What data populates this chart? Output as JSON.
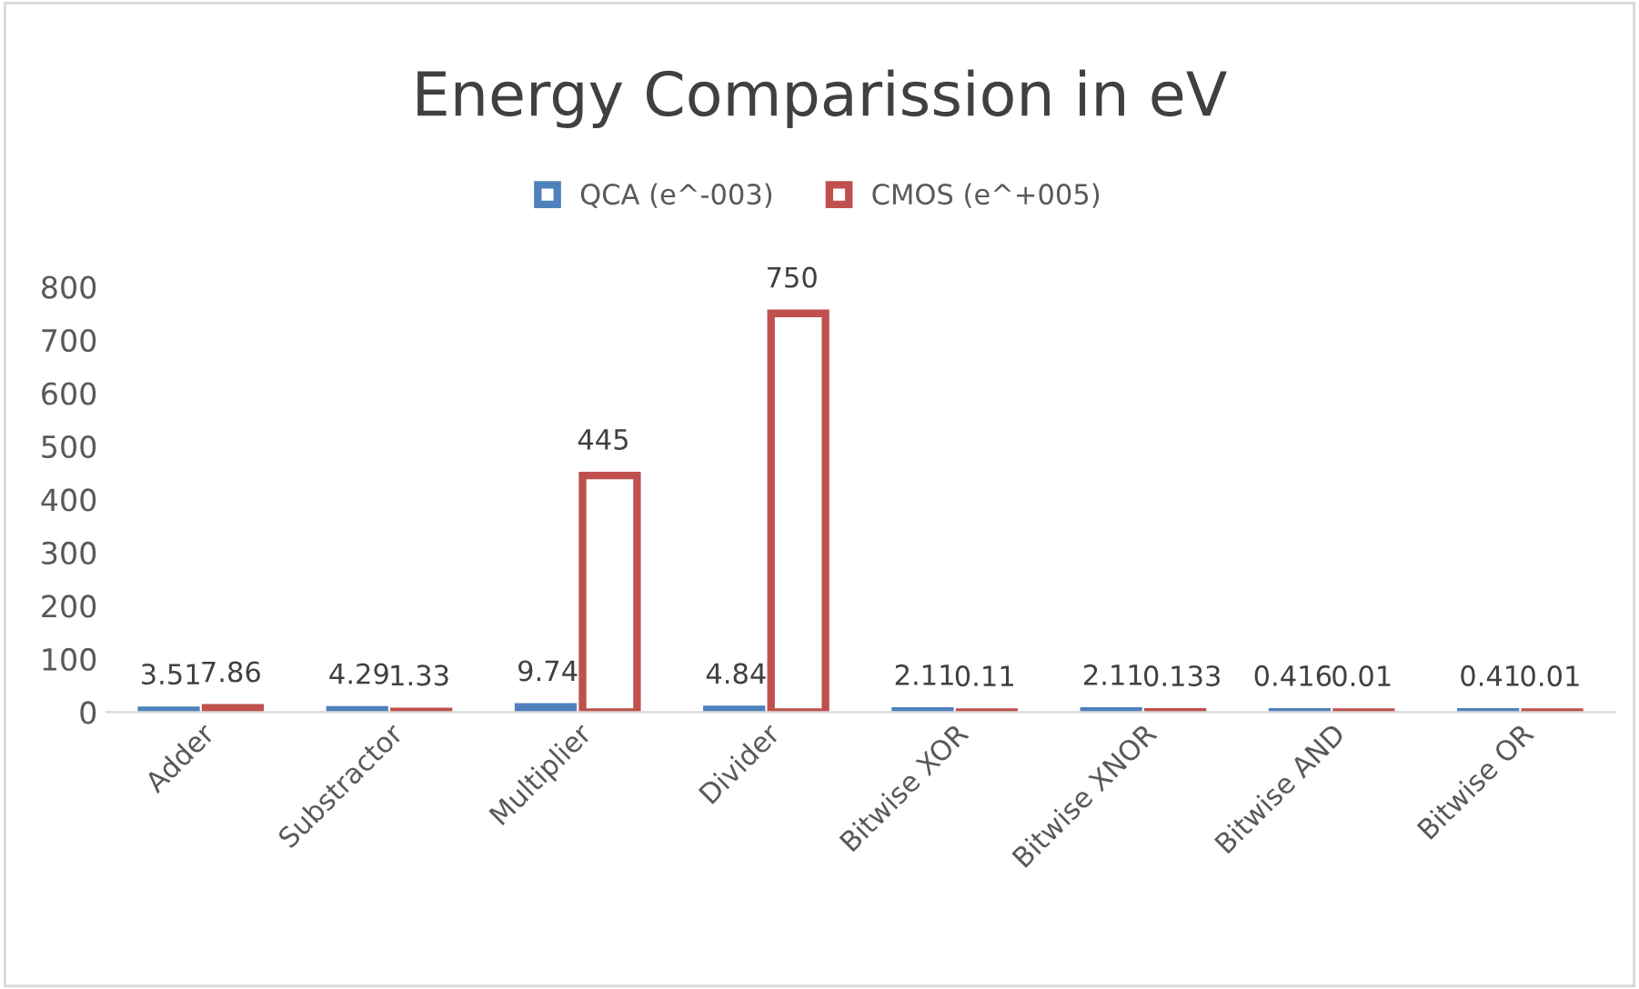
{
  "chart_data": {
    "type": "bar",
    "title": "Energy Comparission in eV",
    "categories": [
      "Adder",
      "Substractor",
      "Multiplier",
      "Divider",
      "Bitwise XOR",
      "Bitwise XNOR",
      "Bitwise AND",
      "Bitwise OR"
    ],
    "series": [
      {
        "name": "QCA (e^-003)",
        "color": "#4f81bd",
        "values": [
          3.51,
          4.29,
          9.74,
          4.84,
          2.11,
          2.11,
          0.416,
          0.41
        ]
      },
      {
        "name": "CMOS (e^+005)",
        "color": "#c0504d",
        "values": [
          7.86,
          1.33,
          445,
          750,
          0.11,
          0.133,
          0.01,
          0.01
        ]
      }
    ],
    "ylim": [
      0,
      800
    ],
    "yticks": [
      0,
      100,
      200,
      300,
      400,
      500,
      600,
      700,
      800
    ],
    "data_labels": true,
    "legend": "top",
    "grid": false
  }
}
